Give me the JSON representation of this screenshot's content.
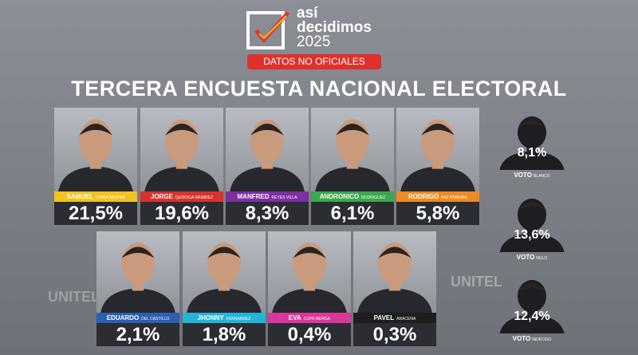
{
  "header": {
    "logo_line1": "así",
    "logo_line2": "decidimos",
    "logo_year": "2025",
    "badge": "DATOS NO OFICIALES",
    "title": "TERCERA ENCUESTA NACIONAL ELECTORAL"
  },
  "watermark": "UNITEL",
  "row1": [
    {
      "first": "SAMUEL",
      "last": "DORIA MEDINA",
      "value": "21,5%",
      "color": "#f2c31c"
    },
    {
      "first": "JORGE",
      "last": "QUIROGA RAMIREZ",
      "value": "19,6%",
      "color": "#d8322b"
    },
    {
      "first": "MANFRED",
      "last": "REYES VILLA",
      "value": "8,3%",
      "color": "#7d2fa3"
    },
    {
      "first": "ANDRONICO",
      "last": "RODRIGUEZ",
      "value": "6,1%",
      "color": "#3ca84c"
    },
    {
      "first": "RODRIGO",
      "last": "PAZ PEREIRA",
      "value": "5,8%",
      "color": "#ee8a22"
    }
  ],
  "row2": [
    {
      "first": "EDUARDO",
      "last": "DEL CASTILLO",
      "value": "2,1%",
      "color": "#2b5fb3"
    },
    {
      "first": "JHONNY",
      "last": "FERNANDEZ",
      "value": "1,8%",
      "color": "#22b5da"
    },
    {
      "first": "EVA",
      "last": "COPA MURGA",
      "value": "0,4%",
      "color": "#d9379b"
    },
    {
      "first": "PAVEL",
      "last": "ARACENA",
      "value": "0,3%",
      "color": "#1e1e1e"
    }
  ],
  "others": [
    {
      "value": "8,1%",
      "label": "VOTO",
      "kind": "BLANCO"
    },
    {
      "value": "13,6%",
      "label": "VOTO",
      "kind": "NULO"
    },
    {
      "value": "12,4%",
      "label": "VOTO",
      "kind": "INDECISO"
    }
  ]
}
